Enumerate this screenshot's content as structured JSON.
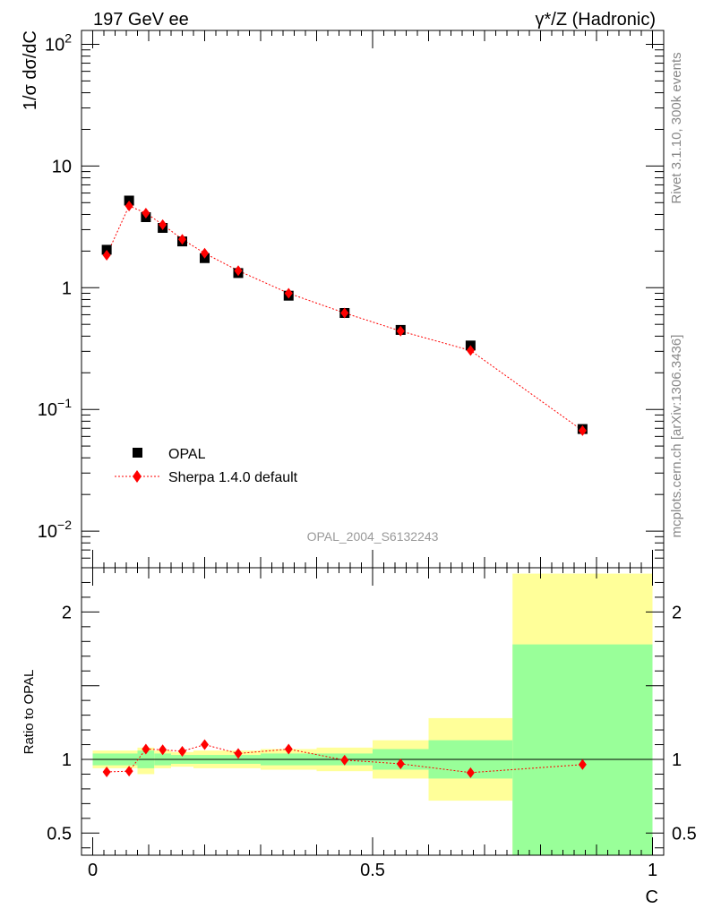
{
  "header": {
    "left": "197 GeV ee",
    "right": "γ*/Z (Hadronic)"
  },
  "side_labels": {
    "rivet": "Rivet 3.1.10,  300k events",
    "mcplots": "mcplots.cern.ch [arXiv:1306.3436]"
  },
  "analysis_label": "OPAL_2004_S6132243",
  "colors": {
    "data": "#000000",
    "mc": "#ff0000",
    "band_outer": "#ffff99",
    "band_inner": "#99ff99"
  },
  "chart_data": [
    {
      "type": "scatter",
      "panel": "main",
      "ylabel": "1/σ dσ/dC",
      "yscale": "log",
      "ylim": [
        0.005,
        130
      ],
      "xlim": [
        -0.02,
        1.02
      ],
      "yticks": [
        {
          "value": 0.01,
          "label": "10",
          "exp": "−2"
        },
        {
          "value": 0.1,
          "label": "10",
          "exp": "−1"
        },
        {
          "value": 1,
          "label": "1",
          "exp": ""
        },
        {
          "value": 10,
          "label": "10",
          "exp": ""
        },
        {
          "value": 100,
          "label": "10",
          "exp": "2"
        }
      ],
      "legend": {
        "placement": "bottom-left"
      },
      "series": [
        {
          "name": "OPAL",
          "marker": "square",
          "x": [
            0.025,
            0.065,
            0.095,
            0.125,
            0.16,
            0.2,
            0.26,
            0.35,
            0.45,
            0.55,
            0.675,
            0.875
          ],
          "y": [
            2.05,
            5.2,
            3.8,
            3.1,
            2.4,
            1.75,
            1.32,
            0.86,
            0.62,
            0.45,
            0.335,
            0.069
          ]
        },
        {
          "name": "Sherpa 1.4.0 default",
          "marker": "diamond",
          "line": "dotted",
          "x": [
            0.025,
            0.065,
            0.095,
            0.125,
            0.16,
            0.2,
            0.26,
            0.35,
            0.45,
            0.55,
            0.675,
            0.875
          ],
          "y": [
            1.85,
            4.7,
            4.1,
            3.3,
            2.5,
            1.92,
            1.38,
            0.9,
            0.62,
            0.44,
            0.305,
            0.067
          ]
        }
      ]
    },
    {
      "type": "scatter",
      "panel": "ratio",
      "ylabel": "Ratio to OPAL",
      "xlabel": "C",
      "ylim": [
        0.35,
        2.3
      ],
      "xlim": [
        -0.02,
        1.02
      ],
      "xticks": [
        {
          "value": 0,
          "label": "0"
        },
        {
          "value": 0.5,
          "label": "0.5"
        },
        {
          "value": 1,
          "label": "1"
        }
      ],
      "yticks": [
        {
          "value": 0.5,
          "label": "0.5"
        },
        {
          "value": 1,
          "label": "1"
        },
        {
          "value": 2,
          "label": "2"
        }
      ],
      "reference_line": 1,
      "bands": [
        {
          "x0": 0.0,
          "x1": 0.08,
          "outer": [
            0.94,
            1.06
          ],
          "inner": [
            0.96,
            1.04
          ]
        },
        {
          "x0": 0.08,
          "x1": 0.11,
          "outer": [
            0.9,
            1.08
          ],
          "inner": [
            0.94,
            1.06
          ]
        },
        {
          "x0": 0.11,
          "x1": 0.14,
          "outer": [
            0.94,
            1.06
          ],
          "inner": [
            0.96,
            1.04
          ]
        },
        {
          "x0": 0.14,
          "x1": 0.18,
          "outer": [
            0.95,
            1.05
          ],
          "inner": [
            0.97,
            1.03
          ]
        },
        {
          "x0": 0.18,
          "x1": 0.22,
          "outer": [
            0.94,
            1.06
          ],
          "inner": [
            0.97,
            1.03
          ]
        },
        {
          "x0": 0.22,
          "x1": 0.3,
          "outer": [
            0.94,
            1.06
          ],
          "inner": [
            0.97,
            1.03
          ]
        },
        {
          "x0": 0.3,
          "x1": 0.4,
          "outer": [
            0.93,
            1.07
          ],
          "inner": [
            0.96,
            1.04
          ]
        },
        {
          "x0": 0.4,
          "x1": 0.5,
          "outer": [
            0.92,
            1.08
          ],
          "inner": [
            0.96,
            1.04
          ]
        },
        {
          "x0": 0.5,
          "x1": 0.6,
          "outer": [
            0.87,
            1.13
          ],
          "inner": [
            0.93,
            1.07
          ]
        },
        {
          "x0": 0.6,
          "x1": 0.75,
          "outer": [
            0.72,
            1.28
          ],
          "inner": [
            0.87,
            1.13
          ]
        },
        {
          "x0": 0.75,
          "x1": 1.0,
          "outer": [
            0.35,
            2.26
          ],
          "inner": [
            0.35,
            1.78
          ]
        }
      ],
      "series": [
        {
          "name": "Sherpa 1.4.0 default",
          "x": [
            0.025,
            0.065,
            0.095,
            0.125,
            0.16,
            0.2,
            0.26,
            0.35,
            0.45,
            0.55,
            0.675,
            0.875
          ],
          "y": [
            0.915,
            0.92,
            1.07,
            1.065,
            1.055,
            1.1,
            1.04,
            1.07,
            0.995,
            0.97,
            0.91,
            0.965
          ]
        }
      ]
    }
  ]
}
